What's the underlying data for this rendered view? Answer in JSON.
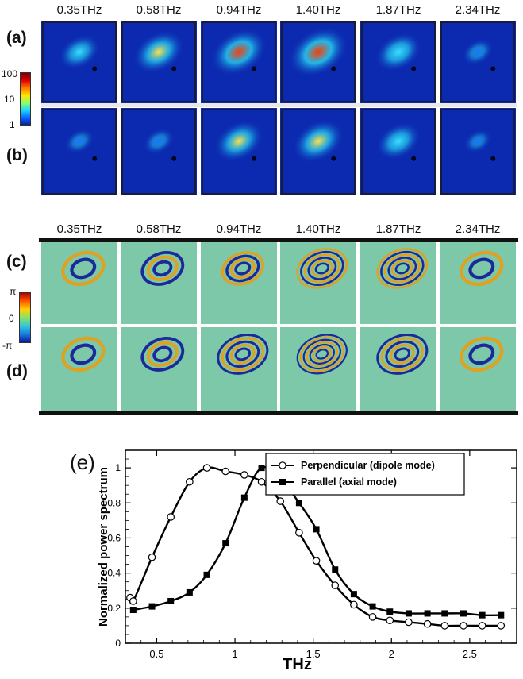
{
  "figure": {
    "top_panel": {
      "frequencies": [
        "0.35THz",
        "0.58THz",
        "0.94THz",
        "1.40THz",
        "1.87THz",
        "2.34THz"
      ],
      "row_labels": [
        "(a)",
        "(b)"
      ],
      "colorbar_ticks": [
        "100",
        "10",
        "1"
      ],
      "hotspot_intensity_a": [
        0.45,
        0.75,
        0.9,
        1.0,
        0.6,
        0.15
      ],
      "hotspot_intensity_b": [
        0.1,
        0.15,
        0.7,
        0.75,
        0.55,
        0.05
      ]
    },
    "bottom_panel": {
      "frequencies": [
        "0.35THz",
        "0.58THz",
        "0.94THz",
        "1.40THz",
        "1.87THz",
        "2.34THz"
      ],
      "row_labels": [
        "(c)",
        "(d)"
      ],
      "colorbar_ticks": [
        "π",
        "0",
        "-π"
      ],
      "ring_counts_c": [
        2,
        3,
        4,
        6,
        6,
        2
      ],
      "ring_counts_d": [
        2,
        3,
        5,
        7,
        5,
        2
      ]
    },
    "colors": {
      "jet_low": "#0a1a9a",
      "jet_mid": "#1ecbe1",
      "jet_high": "#c40000",
      "phase_bg": "#7cc8a8"
    }
  },
  "chart_data": {
    "type": "line",
    "panel_label": "(e)",
    "xlabel": "THz",
    "ylabel": "Normalized power spectrum",
    "xlim": [
      0.3,
      2.8
    ],
    "ylim": [
      0,
      1.1
    ],
    "xticks": [
      "0.5",
      "1",
      "1.5",
      "2",
      "2.5"
    ],
    "yticks": [
      "0",
      "0.2",
      "0.4",
      "0.6",
      "0.8",
      "1"
    ],
    "legend_position": "top-right",
    "series": [
      {
        "name": "Perpendicular (dipole mode)",
        "marker": "open-circle",
        "x": [
          0.33,
          0.35,
          0.47,
          0.59,
          0.71,
          0.82,
          0.94,
          1.06,
          1.17,
          1.29,
          1.41,
          1.52,
          1.64,
          1.76,
          1.88,
          1.99,
          2.11,
          2.23,
          2.34,
          2.46,
          2.58,
          2.7
        ],
        "y": [
          0.26,
          0.24,
          0.49,
          0.72,
          0.92,
          1.0,
          0.98,
          0.96,
          0.92,
          0.81,
          0.63,
          0.47,
          0.33,
          0.22,
          0.15,
          0.13,
          0.12,
          0.11,
          0.1,
          0.1,
          0.1,
          0.1
        ]
      },
      {
        "name": "Parallel (axial mode)",
        "marker": "filled-square",
        "x": [
          0.35,
          0.47,
          0.59,
          0.71,
          0.82,
          0.94,
          1.06,
          1.17,
          1.29,
          1.41,
          1.52,
          1.64,
          1.76,
          1.88,
          1.99,
          2.11,
          2.23,
          2.34,
          2.46,
          2.58,
          2.7
        ],
        "y": [
          0.19,
          0.21,
          0.24,
          0.29,
          0.39,
          0.57,
          0.83,
          1.0,
          0.94,
          0.8,
          0.65,
          0.42,
          0.28,
          0.21,
          0.18,
          0.17,
          0.17,
          0.17,
          0.17,
          0.16,
          0.16
        ]
      }
    ]
  }
}
